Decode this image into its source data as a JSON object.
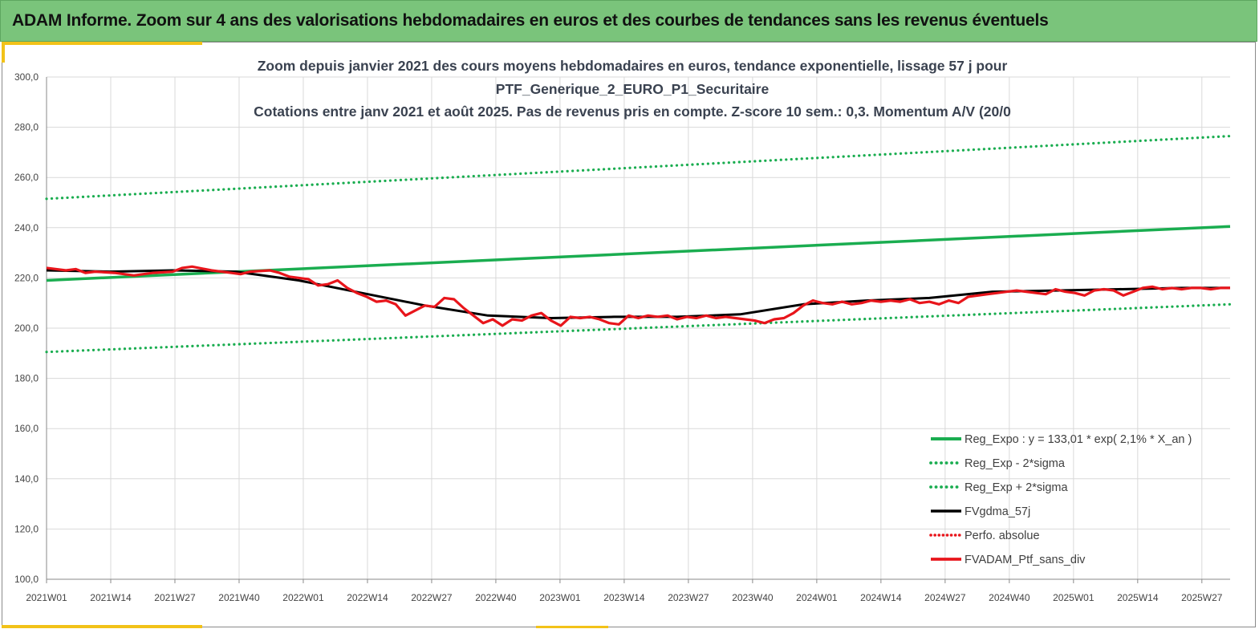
{
  "header": {
    "title": "ADAM Informe. Zoom sur 4 ans des valorisations hebdomadaires en euros et des courbes de tendances sans les revenus éventuels"
  },
  "colors": {
    "banner": "#7ac47b",
    "trend": "#1aad50",
    "smooth": "#000000",
    "price": "#e8151b",
    "accent": "#f2c218"
  },
  "chart_data": {
    "type": "line",
    "title_lines": [
      "Zoom depuis janvier 2021 des cours moyens hebdomadaires  en euros, tendance exponentielle, lissage 57 j pour",
      "PTF_Generique_2_EURO_P1_Securitaire",
      "Cotations entre janv 2021 et août 2025. Pas de revenus pris en compte. Z-score 10 sem.: 0,3. Momentum A/V (20/0"
    ],
    "ylim": [
      100,
      300
    ],
    "y_ticks": [
      "100,0",
      "120,0",
      "140,0",
      "160,0",
      "180,0",
      "200,0",
      "220,0",
      "240,0",
      "260,0",
      "280,0",
      "300,0"
    ],
    "x_ticks": [
      "2021W01",
      "2021W14",
      "2021W27",
      "2021W40",
      "2022W01",
      "2022W14",
      "2022W27",
      "2022W40",
      "2023W01",
      "2023W14",
      "2023W27",
      "2023W40",
      "2024W01",
      "2024W14",
      "2024W27",
      "2024W40",
      "2025W01",
      "2025W14",
      "2025W27"
    ],
    "x_range_weeks": [
      0,
      244
    ],
    "grid": true,
    "legend_position": "bottom-right",
    "series": [
      {
        "name": "Reg_Expo : y = 133,01 * exp( 2,1% *  X_an )",
        "style": "solid-green",
        "x": [
          0,
          244
        ],
        "values": [
          219.0,
          240.5
        ]
      },
      {
        "name": "Reg_Exp - 2*sigma",
        "style": "dotted-green",
        "x": [
          0,
          244
        ],
        "values": [
          190.5,
          209.5
        ]
      },
      {
        "name": "Reg_Exp + 2*sigma",
        "style": "dotted-green",
        "x": [
          0,
          244
        ],
        "values": [
          251.5,
          276.5
        ]
      },
      {
        "name": "FVgdma_57j",
        "style": "solid-black",
        "x": [
          0,
          13,
          26,
          39,
          52,
          65,
          78,
          91,
          104,
          117,
          130,
          143,
          156,
          169,
          182,
          195,
          208,
          221,
          234,
          244
        ],
        "values": [
          223.0,
          222.5,
          223.0,
          222.5,
          219.0,
          214.0,
          209.0,
          205.0,
          204.0,
          204.5,
          204.5,
          205.5,
          209.5,
          211.0,
          212.0,
          214.5,
          215.0,
          215.5,
          216.0,
          216.0
        ]
      },
      {
        "name": "Perfo. absolue",
        "style": "dotted-red",
        "x": [],
        "values": []
      },
      {
        "name": "FVADAM_Ptf_sans_div",
        "style": "solid-red",
        "x": [
          0,
          4,
          6,
          8,
          10,
          14,
          18,
          20,
          22,
          26,
          28,
          30,
          34,
          38,
          40,
          42,
          46,
          48,
          50,
          54,
          56,
          58,
          60,
          62,
          64,
          66,
          68,
          70,
          72,
          74,
          76,
          78,
          80,
          82,
          84,
          86,
          88,
          90,
          92,
          94,
          96,
          98,
          100,
          102,
          104,
          106,
          108,
          110,
          112,
          114,
          116,
          118,
          120,
          122,
          124,
          126,
          128,
          130,
          132,
          134,
          136,
          138,
          140,
          142,
          144,
          146,
          148,
          150,
          152,
          154,
          156,
          158,
          160,
          162,
          164,
          166,
          168,
          170,
          172,
          174,
          176,
          178,
          180,
          182,
          184,
          186,
          188,
          190,
          192,
          194,
          196,
          198,
          200,
          202,
          204,
          206,
          208,
          210,
          212,
          214,
          216,
          218,
          220,
          222,
          224,
          226,
          228,
          230,
          232,
          234,
          236,
          238,
          240,
          242,
          244
        ],
        "values": [
          224.0,
          223.0,
          223.5,
          222.0,
          222.5,
          222.0,
          221.0,
          221.5,
          222.0,
          222.5,
          224.0,
          224.5,
          223.0,
          222.0,
          221.5,
          222.5,
          223.0,
          222.0,
          220.5,
          219.5,
          217.0,
          217.5,
          219.0,
          216.0,
          214.0,
          212.5,
          210.5,
          211.0,
          209.5,
          205.0,
          207.0,
          209.0,
          208.5,
          212.0,
          211.5,
          208.0,
          205.0,
          202.0,
          203.5,
          201.0,
          203.5,
          203.0,
          205.0,
          206.0,
          203.0,
          201.0,
          204.5,
          204.0,
          204.5,
          203.5,
          202.0,
          201.5,
          205.0,
          204.0,
          205.0,
          204.5,
          205.0,
          203.5,
          204.5,
          204.0,
          205.0,
          204.0,
          204.5,
          204.0,
          203.5,
          203.0,
          202.0,
          203.5,
          204.0,
          206.0,
          209.0,
          211.0,
          210.0,
          209.5,
          210.5,
          209.5,
          210.0,
          211.0,
          210.5,
          211.0,
          210.5,
          211.5,
          210.0,
          210.5,
          209.5,
          211.0,
          210.0,
          212.5,
          213.0,
          213.5,
          214.0,
          214.5,
          215.0,
          214.5,
          214.0,
          213.5,
          215.5,
          214.5,
          214.0,
          213.0,
          215.0,
          215.5,
          215.0,
          213.0,
          214.5,
          216.0,
          216.5,
          215.5,
          216.0,
          215.5,
          216.0,
          216.0,
          215.5,
          216.0,
          216.0
        ]
      }
    ]
  }
}
